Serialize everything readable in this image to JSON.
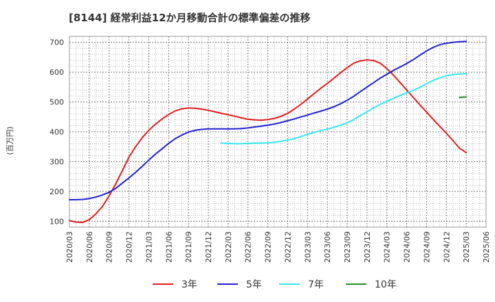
{
  "chart_data": {
    "type": "line",
    "title": "[8144]  経常利益12か月移動合計の標準偏差の推移",
    "ylabel": "(百万円)",
    "xlabel": "",
    "ylim": [
      80,
      720
    ],
    "yticks": [
      100,
      200,
      300,
      400,
      500,
      600,
      700
    ],
    "xlim": [
      "2020-03",
      "2025-06"
    ],
    "xticks": [
      "2020/03",
      "2020/06",
      "2020/09",
      "2020/12",
      "2021/03",
      "2021/06",
      "2021/09",
      "2021/12",
      "2022/03",
      "2022/06",
      "2022/09",
      "2022/12",
      "2023/03",
      "2023/06",
      "2023/09",
      "2023/12",
      "2024/03",
      "2024/06",
      "2024/09",
      "2024/12",
      "2025/03",
      "2025/06"
    ],
    "grid": true,
    "legend_position": "bottom",
    "series": [
      {
        "name": "3年",
        "color": "#e31a1c",
        "points": [
          [
            "2020-03",
            102
          ],
          [
            "2020-04",
            97
          ],
          [
            "2020-05",
            96
          ],
          [
            "2020-06",
            105
          ],
          [
            "2020-07",
            125
          ],
          [
            "2020-08",
            150
          ],
          [
            "2020-09",
            185
          ],
          [
            "2020-10",
            225
          ],
          [
            "2020-11",
            270
          ],
          [
            "2020-12",
            315
          ],
          [
            "2021-01",
            350
          ],
          [
            "2021-02",
            380
          ],
          [
            "2021-03",
            405
          ],
          [
            "2021-04",
            425
          ],
          [
            "2021-05",
            443
          ],
          [
            "2021-06",
            458
          ],
          [
            "2021-07",
            470
          ],
          [
            "2021-08",
            477
          ],
          [
            "2021-09",
            480
          ],
          [
            "2021-10",
            479
          ],
          [
            "2021-11",
            476
          ],
          [
            "2021-12",
            472
          ],
          [
            "2022-01",
            467
          ],
          [
            "2022-02",
            462
          ],
          [
            "2022-03",
            457
          ],
          [
            "2022-04",
            452
          ],
          [
            "2022-05",
            447
          ],
          [
            "2022-06",
            442
          ],
          [
            "2022-07",
            440
          ],
          [
            "2022-08",
            439
          ],
          [
            "2022-09",
            441
          ],
          [
            "2022-10",
            445
          ],
          [
            "2022-11",
            452
          ],
          [
            "2022-12",
            462
          ],
          [
            "2023-01",
            476
          ],
          [
            "2023-02",
            492
          ],
          [
            "2023-03",
            510
          ],
          [
            "2023-04",
            528
          ],
          [
            "2023-05",
            546
          ],
          [
            "2023-06",
            562
          ],
          [
            "2023-07",
            580
          ],
          [
            "2023-08",
            598
          ],
          [
            "2023-09",
            615
          ],
          [
            "2023-10",
            630
          ],
          [
            "2023-11",
            638
          ],
          [
            "2023-12",
            641
          ],
          [
            "2024-01",
            639
          ],
          [
            "2024-02",
            630
          ],
          [
            "2024-03",
            612
          ],
          [
            "2024-04",
            590
          ],
          [
            "2024-05",
            565
          ],
          [
            "2024-06",
            540
          ],
          [
            "2024-07",
            515
          ],
          [
            "2024-08",
            490
          ],
          [
            "2024-09",
            466
          ],
          [
            "2024-10",
            442
          ],
          [
            "2024-11",
            418
          ],
          [
            "2024-12",
            395
          ],
          [
            "2025-01",
            370
          ],
          [
            "2025-02",
            345
          ],
          [
            "2025-03",
            330
          ]
        ]
      },
      {
        "name": "5年",
        "color": "#1f1fcf",
        "points": [
          [
            "2020-03",
            172
          ],
          [
            "2020-04",
            172
          ],
          [
            "2020-05",
            173
          ],
          [
            "2020-06",
            176
          ],
          [
            "2020-07",
            181
          ],
          [
            "2020-08",
            188
          ],
          [
            "2020-09",
            197
          ],
          [
            "2020-10",
            210
          ],
          [
            "2020-11",
            228
          ],
          [
            "2020-12",
            245
          ],
          [
            "2021-01",
            264
          ],
          [
            "2021-02",
            284
          ],
          [
            "2021-03",
            305
          ],
          [
            "2021-04",
            325
          ],
          [
            "2021-05",
            343
          ],
          [
            "2021-06",
            361
          ],
          [
            "2021-07",
            377
          ],
          [
            "2021-08",
            389
          ],
          [
            "2021-09",
            399
          ],
          [
            "2021-10",
            405
          ],
          [
            "2021-11",
            408
          ],
          [
            "2021-12",
            410
          ],
          [
            "2022-01",
            410
          ],
          [
            "2022-02",
            410
          ],
          [
            "2022-03",
            410
          ],
          [
            "2022-04",
            410
          ],
          [
            "2022-05",
            411
          ],
          [
            "2022-06",
            413
          ],
          [
            "2022-07",
            416
          ],
          [
            "2022-08",
            419
          ],
          [
            "2022-09",
            422
          ],
          [
            "2022-10",
            426
          ],
          [
            "2022-11",
            431
          ],
          [
            "2022-12",
            437
          ],
          [
            "2023-01",
            443
          ],
          [
            "2023-02",
            450
          ],
          [
            "2023-03",
            456
          ],
          [
            "2023-04",
            463
          ],
          [
            "2023-05",
            469
          ],
          [
            "2023-06",
            476
          ],
          [
            "2023-07",
            484
          ],
          [
            "2023-08",
            494
          ],
          [
            "2023-09",
            506
          ],
          [
            "2023-10",
            519
          ],
          [
            "2023-11",
            535
          ],
          [
            "2023-12",
            550
          ],
          [
            "2024-01",
            565
          ],
          [
            "2024-02",
            580
          ],
          [
            "2024-03",
            593
          ],
          [
            "2024-04",
            606
          ],
          [
            "2024-05",
            617
          ],
          [
            "2024-06",
            629
          ],
          [
            "2024-07",
            642
          ],
          [
            "2024-08",
            657
          ],
          [
            "2024-09",
            671
          ],
          [
            "2024-10",
            683
          ],
          [
            "2024-11",
            692
          ],
          [
            "2024-12",
            697
          ],
          [
            "2025-01",
            700
          ],
          [
            "2025-02",
            702
          ],
          [
            "2025-03",
            703
          ]
        ]
      },
      {
        "name": "7年",
        "color": "#33e8f0",
        "points": [
          [
            "2022-02",
            362
          ],
          [
            "2022-03",
            361
          ],
          [
            "2022-04",
            360
          ],
          [
            "2022-05",
            360
          ],
          [
            "2022-06",
            361
          ],
          [
            "2022-07",
            362
          ],
          [
            "2022-08",
            362
          ],
          [
            "2022-09",
            363
          ],
          [
            "2022-10",
            365
          ],
          [
            "2022-11",
            368
          ],
          [
            "2022-12",
            372
          ],
          [
            "2023-01",
            377
          ],
          [
            "2023-02",
            384
          ],
          [
            "2023-03",
            391
          ],
          [
            "2023-04",
            398
          ],
          [
            "2023-05",
            404
          ],
          [
            "2023-06",
            409
          ],
          [
            "2023-07",
            415
          ],
          [
            "2023-08",
            422
          ],
          [
            "2023-09",
            430
          ],
          [
            "2023-10",
            441
          ],
          [
            "2023-11",
            454
          ],
          [
            "2023-12",
            467
          ],
          [
            "2024-01",
            480
          ],
          [
            "2024-02",
            492
          ],
          [
            "2024-03",
            502
          ],
          [
            "2024-04",
            512
          ],
          [
            "2024-05",
            522
          ],
          [
            "2024-06",
            530
          ],
          [
            "2024-07",
            539
          ],
          [
            "2024-08",
            549
          ],
          [
            "2024-09",
            561
          ],
          [
            "2024-10",
            572
          ],
          [
            "2024-11",
            581
          ],
          [
            "2024-12",
            588
          ],
          [
            "2025-01",
            592
          ],
          [
            "2025-02",
            594
          ],
          [
            "2025-03",
            595
          ]
        ]
      },
      {
        "name": "10年",
        "color": "#228b22",
        "points": [
          [
            "2025-02",
            515
          ],
          [
            "2025-03",
            517
          ]
        ]
      }
    ]
  }
}
